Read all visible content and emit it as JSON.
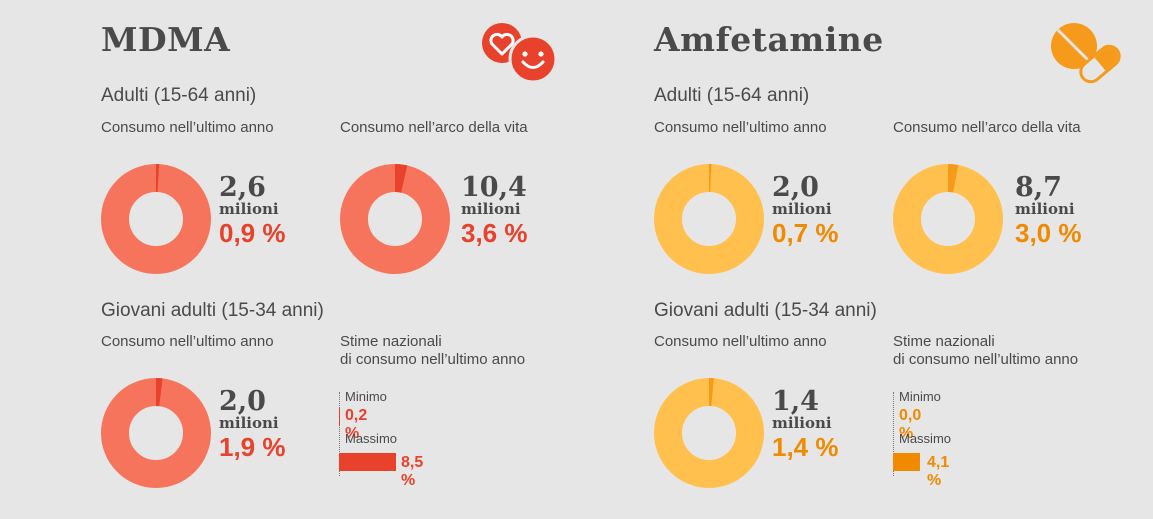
{
  "panels": [
    {
      "id": "mdma",
      "title": "MDMA",
      "icon": "heart-smiley-icon",
      "color_ring": "#f7745c",
      "color_slice": "#e8412c",
      "color_text": "#e8412c",
      "color_bar": "#e8412c",
      "adults": {
        "title": "Adulti (15-64 anni)",
        "year": {
          "label": "Consumo nell’ultimo anno",
          "value": "2,6",
          "unit": "milioni",
          "pct": "0,9 %"
        },
        "life": {
          "label": "Consumo nell’arco della vita",
          "value": "10,4",
          "unit": "milioni",
          "pct": "3,6 %"
        }
      },
      "young": {
        "title": "Giovani adulti (15-34 anni)",
        "year": {
          "label": "Consumo nell’ultimo anno",
          "value": "2,0",
          "unit": "milioni",
          "pct": "1,9 %"
        },
        "estimates": {
          "label_line1": "Stime nazionali",
          "label_line2": "di consumo nell’ultimo anno",
          "min_label": "Minimo",
          "min_value": "0,2 %",
          "max_label": "Massimo",
          "max_value": "8,5 %"
        }
      }
    },
    {
      "id": "amf",
      "title": "Amfetamine",
      "icon": "pills-icon",
      "color_ring": "#ffc04d",
      "color_slice": "#f59a1b",
      "color_text": "#f08a00",
      "color_bar": "#f08a00",
      "adults": {
        "title": "Adulti (15-64 anni)",
        "year": {
          "label": "Consumo nell’ultimo anno",
          "value": "2,0",
          "unit": "milioni",
          "pct": "0,7 %"
        },
        "life": {
          "label": "Consumo nell’arco della vita",
          "value": "8,7",
          "unit": "milioni",
          "pct": "3,0 %"
        }
      },
      "young": {
        "title": "Giovani adulti (15-34 anni)",
        "year": {
          "label": "Consumo nell’ultimo anno",
          "value": "1,4",
          "unit": "milioni",
          "pct": "1,4 %"
        },
        "estimates": {
          "label_line1": "Stime nazionali",
          "label_line2": "di consumo nell’ultimo anno",
          "min_label": "Minimo",
          "min_value": "0,0 %",
          "max_label": "Massimo",
          "max_value": "4,1 %"
        }
      }
    }
  ],
  "chart_data": [
    {
      "type": "pie",
      "drug": "MDMA",
      "group": "Adulti (15-64 anni)",
      "measure": "Consumo nell’ultimo anno",
      "value_millions": 2.6,
      "percent": 0.9
    },
    {
      "type": "pie",
      "drug": "MDMA",
      "group": "Adulti (15-64 anni)",
      "measure": "Consumo nell’arco della vita",
      "value_millions": 10.4,
      "percent": 3.6
    },
    {
      "type": "pie",
      "drug": "MDMA",
      "group": "Giovani adulti (15-34 anni)",
      "measure": "Consumo nell’ultimo anno",
      "value_millions": 2.0,
      "percent": 1.9
    },
    {
      "type": "bar",
      "drug": "MDMA",
      "measure": "Stime nazionali di consumo nell’ultimo anno",
      "categories": [
        "Minimo",
        "Massimo"
      ],
      "values": [
        0.2,
        8.5
      ]
    },
    {
      "type": "pie",
      "drug": "Amfetamine",
      "group": "Adulti (15-64 anni)",
      "measure": "Consumo nell’ultimo anno",
      "value_millions": 2.0,
      "percent": 0.7
    },
    {
      "type": "pie",
      "drug": "Amfetamine",
      "group": "Adulti (15-64 anni)",
      "measure": "Consumo nell’arco della vita",
      "value_millions": 8.7,
      "percent": 3.0
    },
    {
      "type": "pie",
      "drug": "Amfetamine",
      "group": "Giovani adulti (15-34 anni)",
      "measure": "Consumo nell’ultimo anno",
      "value_millions": 1.4,
      "percent": 1.4
    },
    {
      "type": "bar",
      "drug": "Amfetamine",
      "measure": "Stime nazionali di consumo nell’ultimo anno",
      "categories": [
        "Minimo",
        "Massimo"
      ],
      "values": [
        0.0,
        4.1
      ]
    }
  ]
}
